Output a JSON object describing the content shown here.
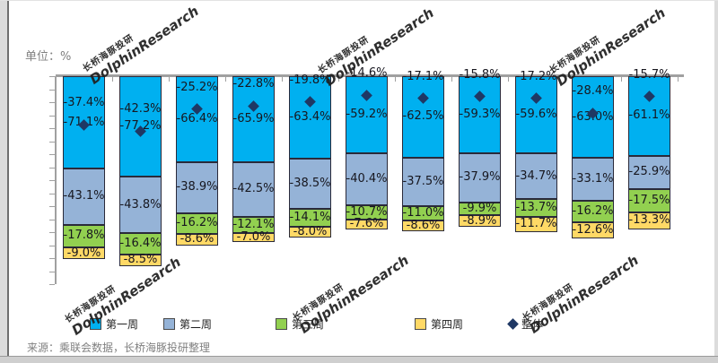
{
  "header": {
    "unit_label": "单位：%"
  },
  "footer": {
    "source_text": "来源：乘联会数据，长桥海豚投研整理"
  },
  "watermark": {
    "line1": "长桥海豚投研",
    "line2": "DolphinResearch"
  },
  "chart_data": {
    "type": "bar",
    "stacked": true,
    "orientation": "vertical",
    "value_unit": "%",
    "title": "",
    "xlabel": "",
    "ylabel": "单位：%",
    "ylim": [
      -165,
      0
    ],
    "y_tick_interval": 10,
    "grid": false,
    "legend_position": "bottom",
    "categories": [
      "",
      "",
      "",
      "",
      "",
      "",
      "",
      "",
      "",
      "",
      ""
    ],
    "series": [
      {
        "name": "第一周",
        "color": "#00B0F0",
        "values": [
          -71.1,
          -77.2,
          -66.4,
          -65.9,
          -63.4,
          -59.2,
          -62.5,
          -59.3,
          -59.6,
          -63.0,
          -61.1
        ]
      },
      {
        "name": "第二周",
        "color": "#95B3D7",
        "values": [
          -43.1,
          -43.8,
          -38.9,
          -42.5,
          -38.5,
          -40.4,
          -37.5,
          -37.9,
          -34.7,
          -33.1,
          -25.9
        ]
      },
      {
        "name": "第三周",
        "color": "#92D050",
        "values": [
          -17.8,
          -16.4,
          -16.2,
          -12.1,
          -14.1,
          -10.7,
          -11.0,
          -9.9,
          -13.7,
          -16.2,
          -17.5
        ]
      },
      {
        "name": "第四周",
        "color": "#FFD966",
        "values": [
          -9.0,
          -8.5,
          -8.6,
          -7.0,
          -8.0,
          -7.6,
          -8.6,
          -8.9,
          -11.7,
          -12.6,
          -13.3
        ]
      }
    ],
    "scatter_series": {
      "name": "整体",
      "marker": "diamond",
      "color": "#1F3864",
      "values": [
        -37.4,
        -42.3,
        -25.2,
        -22.8,
        -19.8,
        -14.6,
        -17.1,
        -15.8,
        -17.2,
        -28.4,
        -15.7
      ]
    }
  }
}
